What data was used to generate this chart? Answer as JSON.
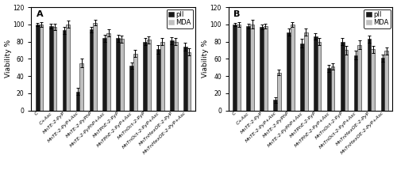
{
  "panel_A": {
    "label": "A",
    "categories": [
      "C",
      "C+Asc",
      "MnTE-2-PyP",
      "MnTE-2-PyP+Asc",
      "MnTE-2-PyPhP",
      "MnTE-2-PyPhP+Asc",
      "MnTPhE-2-PyP",
      "MnTPhE-2-PyP+Asc",
      "MnTnOct-2-PyP",
      "MnTnOct-2-PyP+Asc",
      "MnTnHexOE-2-PyP",
      "MnTnHexOE-2-PyP+Asc"
    ],
    "pII_values": [
      100,
      98,
      93,
      22,
      94,
      84,
      84,
      52,
      80,
      71,
      81,
      74
    ],
    "MDA_values": [
      100,
      97,
      100,
      55,
      102,
      90,
      83,
      66,
      82,
      80,
      80,
      68
    ],
    "pII_err": [
      2,
      3,
      4,
      4,
      3,
      4,
      4,
      4,
      4,
      5,
      4,
      5
    ],
    "MDA_err": [
      3,
      4,
      4,
      5,
      3,
      4,
      4,
      4,
      4,
      4,
      4,
      4
    ]
  },
  "panel_B": {
    "label": "B",
    "categories": [
      "C",
      "C+Asc",
      "MnTE-2-PyP",
      "MnTE-2-PyP+Asc",
      "MnTE-2-PyPhP",
      "MnTE-2-PyPhP+Asc",
      "MnTPhE-2-PyP",
      "MnTPhE-2-PyP+Asc",
      "MnTnOct-2-PyP",
      "MnTnOct-2-PyP+Asc",
      "MnTnHexOE-2-PyP",
      "MnTnHexOE-2-PyP+Asc"
    ],
    "pII_values": [
      100,
      98,
      97,
      12,
      91,
      78,
      86,
      49,
      80,
      64,
      83,
      61
    ],
    "MDA_values": [
      100,
      100,
      98,
      44,
      100,
      91,
      80,
      51,
      70,
      76,
      71,
      69
    ],
    "pII_err": [
      2,
      3,
      3,
      3,
      4,
      5,
      4,
      4,
      4,
      5,
      4,
      4
    ],
    "MDA_err": [
      3,
      5,
      3,
      3,
      3,
      4,
      4,
      4,
      5,
      5,
      4,
      4
    ]
  },
  "bar_color_pII": "#1a1a1a",
  "bar_color_MDA": "#c0c0c0",
  "ylabel": "Viability %",
  "ylim": [
    0,
    120
  ],
  "yticks": [
    0,
    20,
    40,
    60,
    80,
    100,
    120
  ],
  "bar_width": 0.28,
  "xlabel_fontsize": 4.5,
  "ylabel_fontsize": 6.5,
  "tick_fontsize": 5.5,
  "legend_fontsize": 6.0,
  "panel_label_fontsize": 8,
  "elinewidth": 0.7,
  "capsize": 1.2,
  "bar_edgecolor": "#1a1a1a",
  "bar_edgewidth": 0.4
}
